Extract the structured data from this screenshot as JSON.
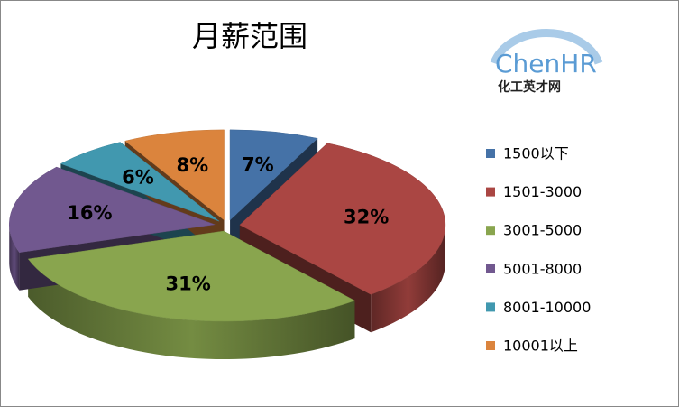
{
  "chart_data": {
    "type": "pie3d",
    "title": "月薪范围",
    "logo": {
      "text": "ChenHR",
      "subtitle": "化工英才网"
    },
    "categories": [
      "1500以下",
      "1501-3000",
      "3001-5000",
      "5001-8000",
      "8001-10000",
      "10001以上"
    ],
    "values": [
      7,
      32,
      31,
      16,
      6,
      8
    ],
    "value_labels": [
      "7%",
      "32%",
      "31%",
      "16%",
      "6%",
      "8%"
    ],
    "colors": [
      "#4572a7",
      "#aa4643",
      "#89a54e",
      "#71588f",
      "#4198af",
      "#db843d"
    ],
    "legend": "right"
  }
}
